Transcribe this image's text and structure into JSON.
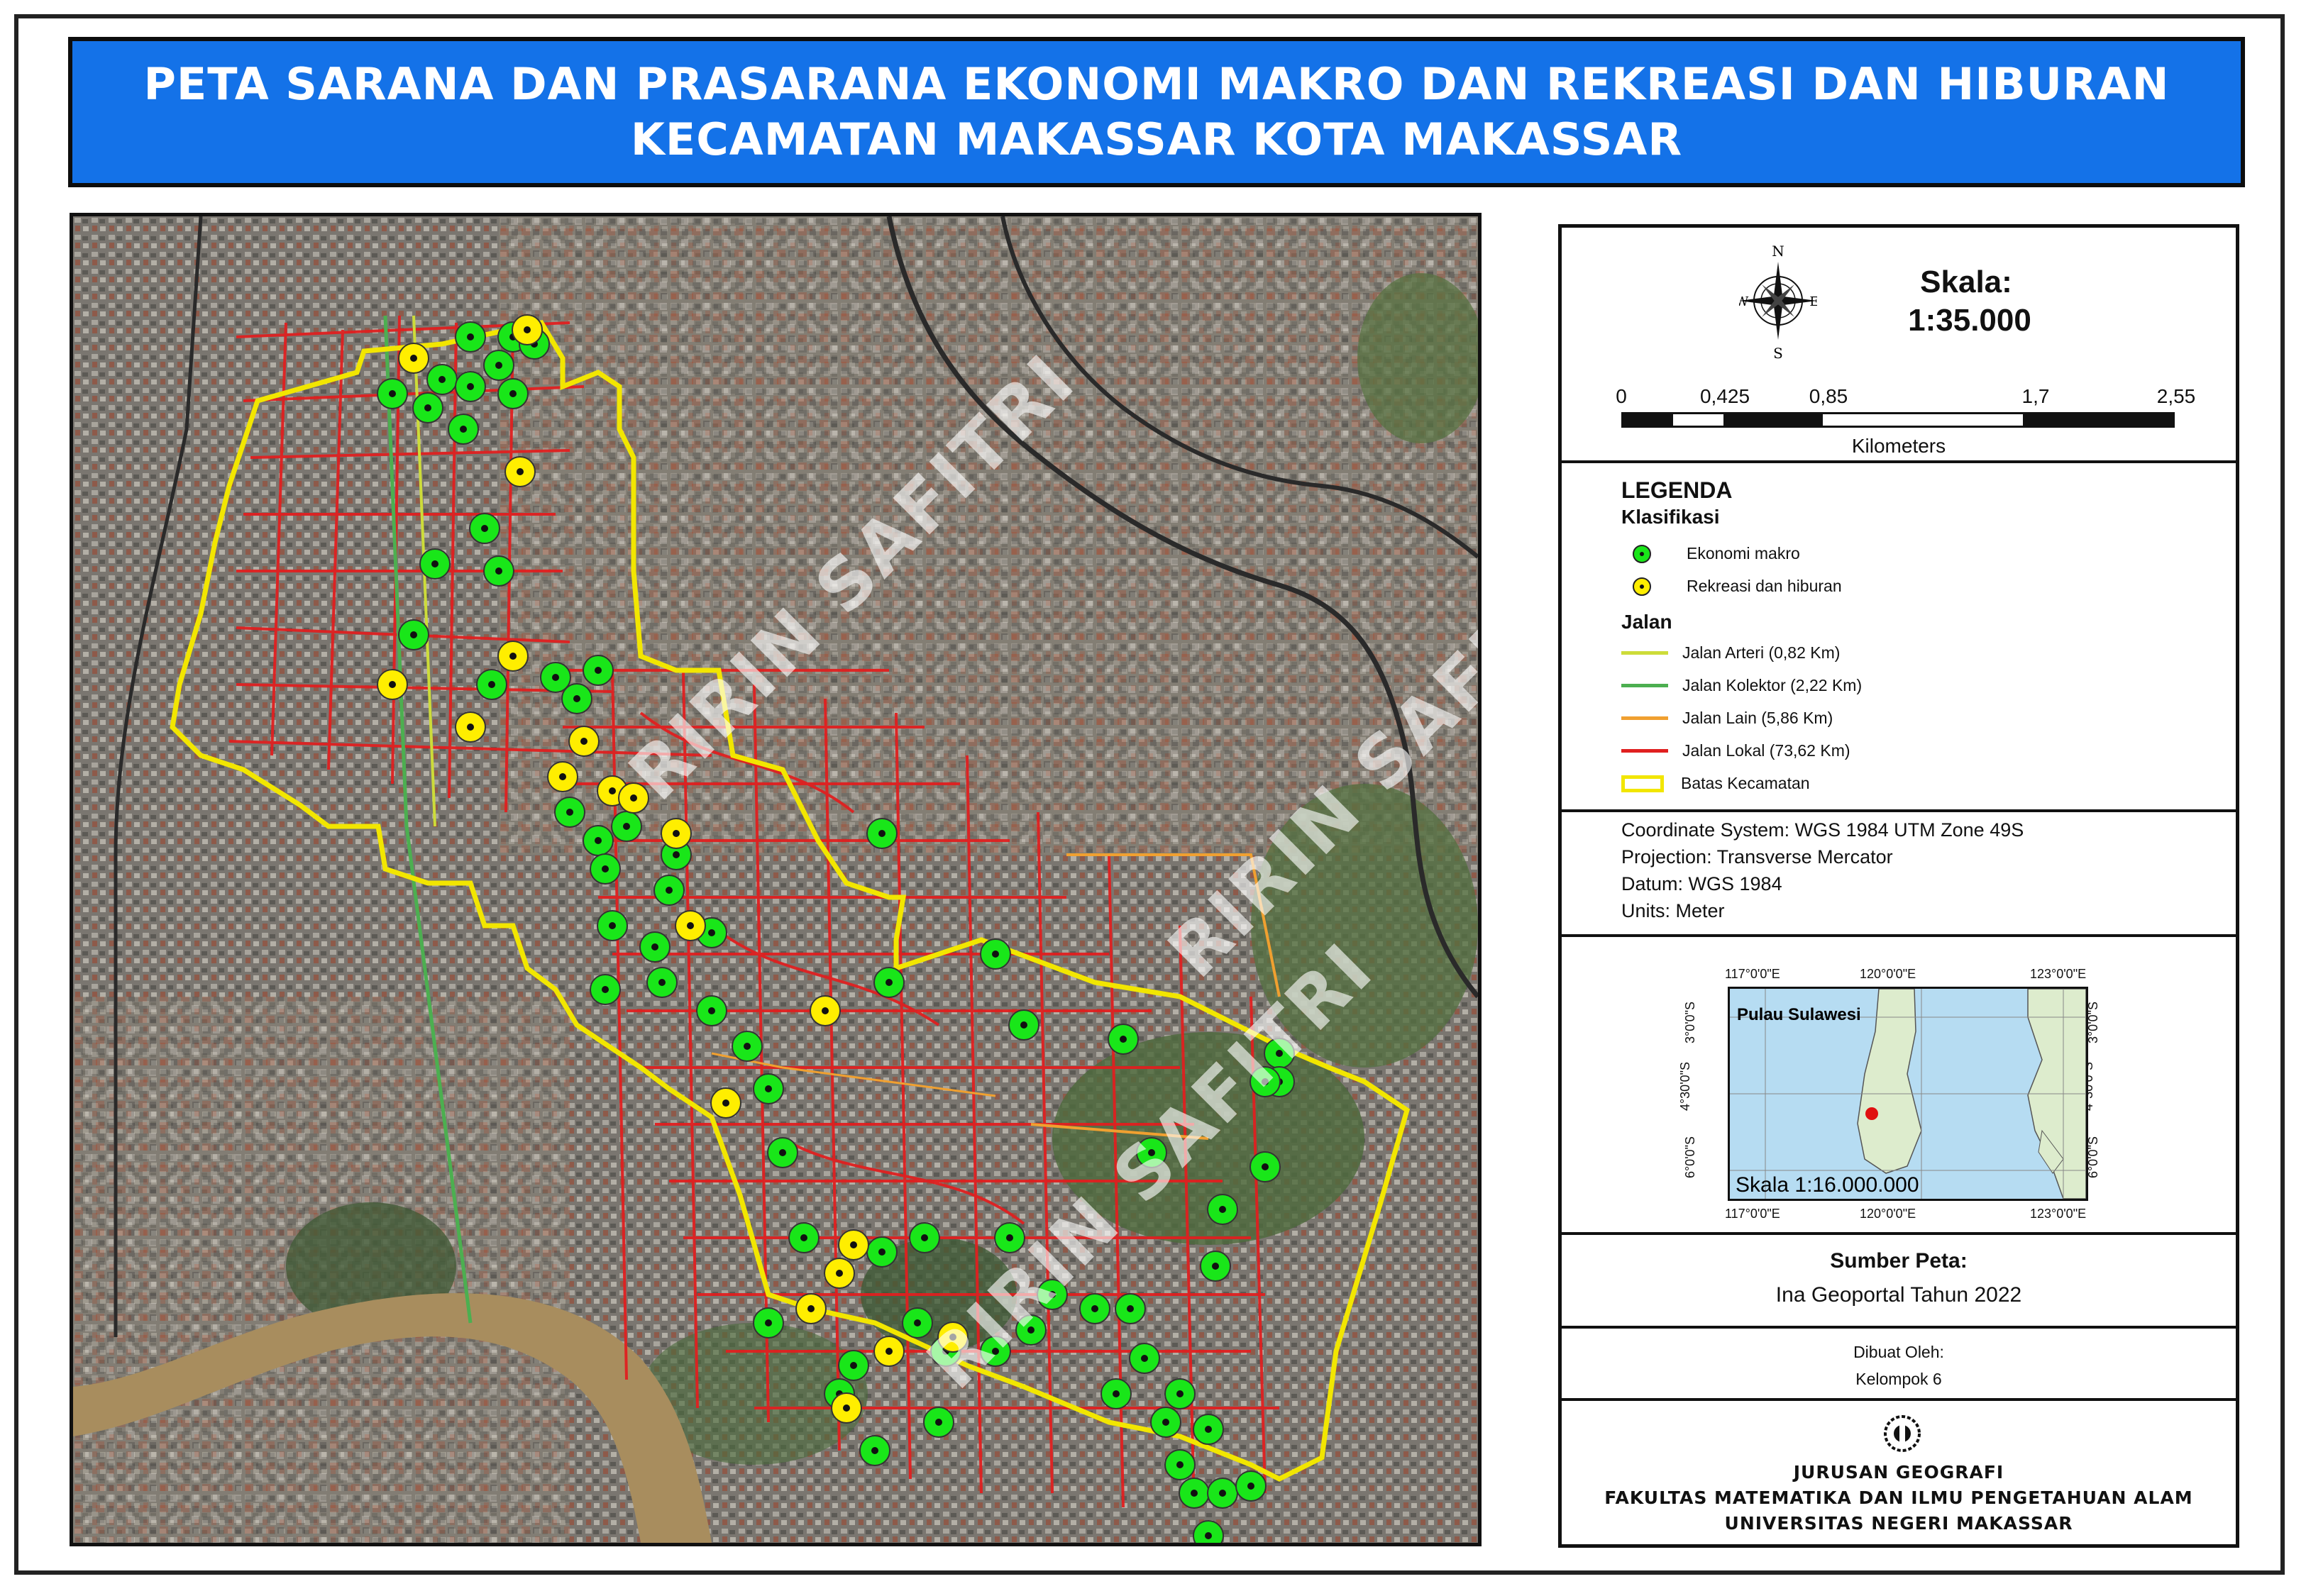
{
  "title": {
    "line1": "PETA SARANA DAN PRASARANA EKONOMI MAKRO DAN REKREASI DAN HIBURAN",
    "line2": "KECAMATAN MAKASSAR KOTA MAKASSAR"
  },
  "compass": {
    "n": "N",
    "s": "S",
    "e": "E",
    "w": "W"
  },
  "scale": {
    "label": "Skala:",
    "value": "1:35.000",
    "ticks": [
      "0",
      "0,425",
      "0,85",
      "1,7",
      "2,55"
    ],
    "unit": "Kilometers"
  },
  "legend": {
    "title": "LEGENDA",
    "points_heading": "Klasifikasi",
    "points": [
      {
        "label": "Ekonomi makro",
        "color": "#19e619"
      },
      {
        "label": "Rekreasi dan hiburan",
        "color": "#ffee00"
      }
    ],
    "roads_heading": "Jalan",
    "roads": [
      {
        "label": "Jalan Arteri (0,82 Km)",
        "color": "#cddc39"
      },
      {
        "label": "Jalan Kolektor (2,22 Km)",
        "color": "#4caf50"
      },
      {
        "label": "Jalan Lain (5,86 Km)",
        "color": "#f0a030"
      },
      {
        "label": "Jalan Lokal (73,62 Km)",
        "color": "#e02020"
      }
    ],
    "boundary": {
      "label": "Batas Kecamatan",
      "color": "#f2e600"
    }
  },
  "coordinate_info": [
    "Coordinate System: WGS 1984 UTM Zone 49S",
    "Projection: Transverse Mercator",
    "Datum: WGS 1984",
    "Units: Meter"
  ],
  "inset": {
    "top_labels": [
      "117°0'0\"E",
      "120°0'0\"E",
      "123°0'0\"E"
    ],
    "bottom_labels": [
      "117°0'0\"E",
      "120°0'0\"E",
      "123°0'0\"E"
    ],
    "left_labels": [
      "3°0'0\"S",
      "4°30'0\"S",
      "6°0'0\"S"
    ],
    "right_labels": [
      "3°0'0\"S",
      "4°30'0\"S",
      "6°0'0\"S"
    ],
    "island": "Pulau Sulawesi",
    "scale": "Skala 1:16.000.000"
  },
  "source": {
    "title": "Sumber Peta:",
    "value": "Ina Geoportal Tahun 2022"
  },
  "made_by": {
    "label": "Dibuat Oleh:",
    "value": "Kelompok 6"
  },
  "institution": [
    "JURUSAN GEOGRAFI",
    "FAKULTAS MATEMATIKA DAN ILMU PENGETAHUAN ALAM",
    "UNIVERSITAS NEGERI MAKASSAR"
  ],
  "watermark": "RIRIN SAFITRI"
}
